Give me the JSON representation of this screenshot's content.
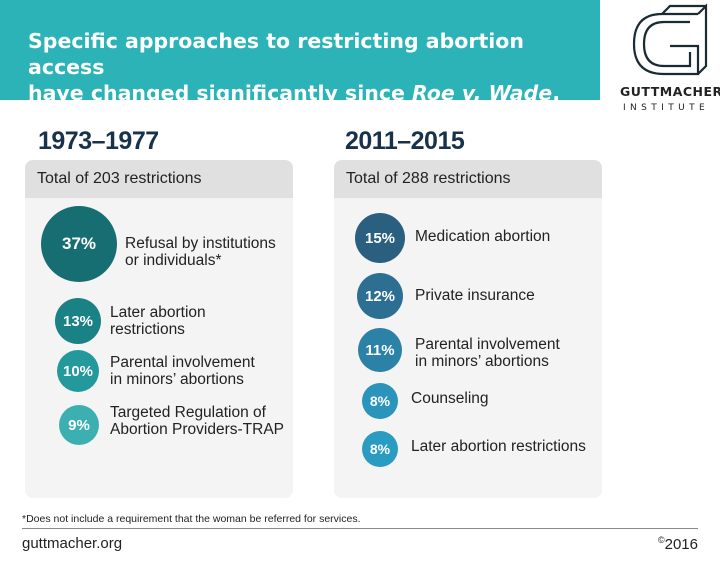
{
  "header": {
    "title_line1": "Specific approaches to restricting abortion access",
    "title_line2_pre": "have changed significantly since ",
    "title_line2_em": "Roe v. Wade",
    "title_line2_post": "."
  },
  "logo": {
    "name": "GUTTMACHER",
    "subtitle": "INSTITUTE"
  },
  "left": {
    "period": "1973–1977",
    "total": "Total of 203 restrictions",
    "items": [
      {
        "pct": "37%",
        "line1": "Refusal by institutions",
        "line2": "or individuals*"
      },
      {
        "pct": "13%",
        "line1": "Later abortion",
        "line2": "restrictions"
      },
      {
        "pct": "10%",
        "line1": "Parental involvement",
        "line2": "in minors’ abortions"
      },
      {
        "pct": "9%",
        "line1": "Targeted Regulation of",
        "line2": "Abortion Providers-TRAP"
      }
    ]
  },
  "right": {
    "period": "2011–2015",
    "total": "Total of 288 restrictions",
    "items": [
      {
        "pct": "15%",
        "line1": "Medication abortion",
        "line2": ""
      },
      {
        "pct": "12%",
        "line1": "Private insurance",
        "line2": ""
      },
      {
        "pct": "11%",
        "line1": "Parental involvement",
        "line2": "in minors’ abortions"
      },
      {
        "pct": "8%",
        "line1": "Counseling",
        "line2": ""
      },
      {
        "pct": "8%",
        "line1": "Later abortion restrictions",
        "line2": ""
      }
    ]
  },
  "footnote": "*Does not include a requirement that the woman be referred for services.",
  "footer": {
    "site": "guttmacher.org",
    "copyright_symbol": "©",
    "year": "2016"
  },
  "colors": {
    "header_bg": "#2bb3b8",
    "period_text": "#17324a",
    "left_bubbles": [
      "#176e72",
      "#1a8185",
      "#23999c",
      "#3cb0b0"
    ],
    "right_bubbles": [
      "#2b5f80",
      "#2d6f93",
      "#2b81a6",
      "#2a94bb",
      "#2a9cc2"
    ]
  }
}
